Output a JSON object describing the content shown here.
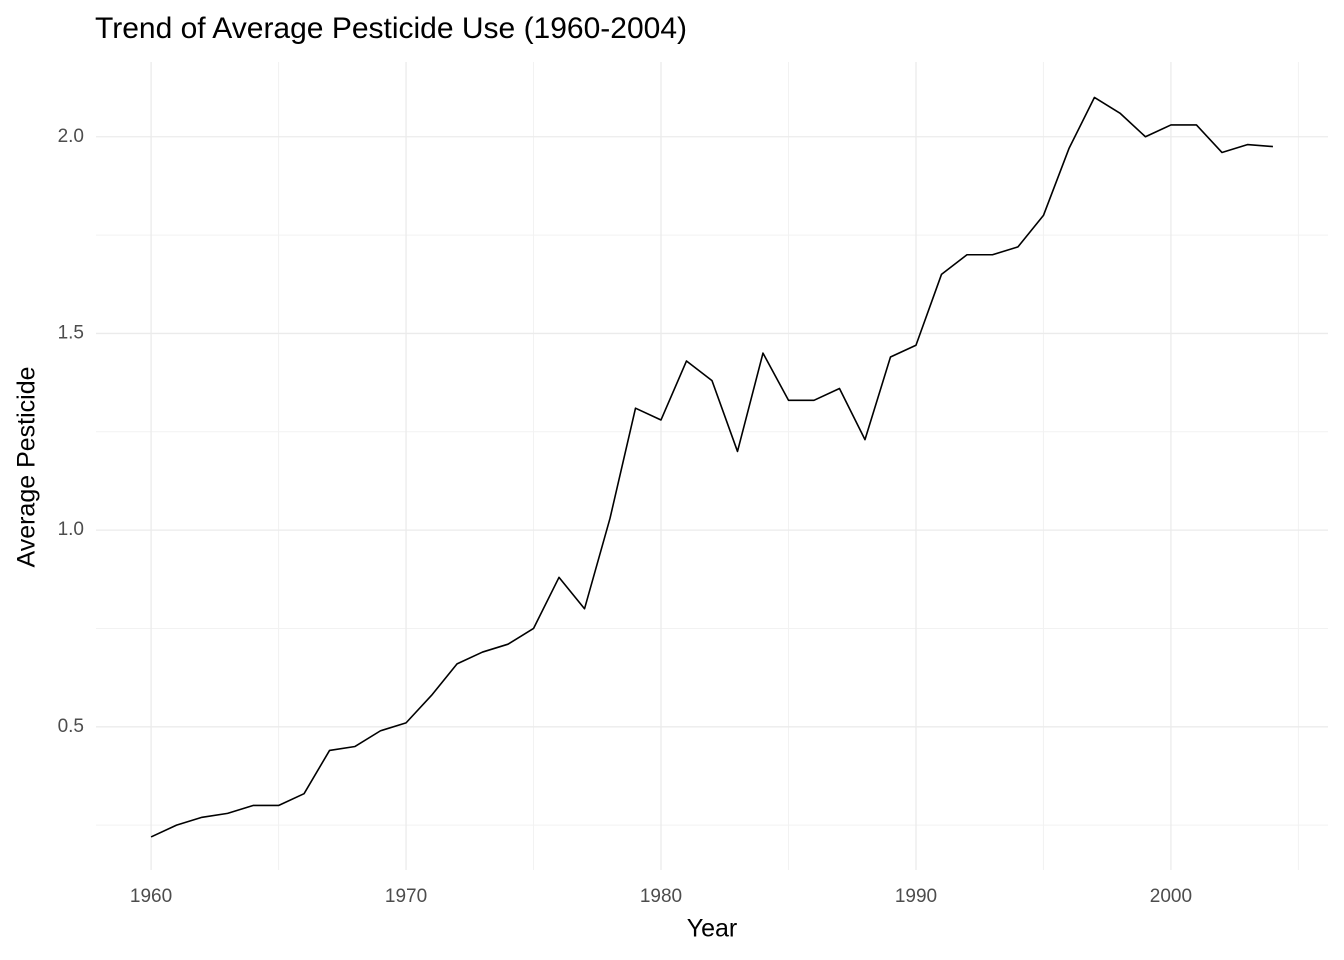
{
  "chart_data": {
    "type": "line",
    "title": "Trend of Average Pesticide Use (1960-2004)",
    "x_label": "Year",
    "y_label": "Average Pesticide",
    "x": [
      1960,
      1961,
      1962,
      1963,
      1964,
      1965,
      1966,
      1967,
      1968,
      1969,
      1970,
      1971,
      1972,
      1973,
      1974,
      1975,
      1976,
      1977,
      1978,
      1979,
      1980,
      1981,
      1982,
      1983,
      1984,
      1985,
      1986,
      1987,
      1988,
      1989,
      1990,
      1991,
      1992,
      1993,
      1994,
      1995,
      1996,
      1997,
      1998,
      1999,
      2000,
      2001,
      2002,
      2003,
      2004
    ],
    "series": [
      {
        "name": "Average Pesticide",
        "color": "#000000",
        "values": [
          0.22,
          0.25,
          0.27,
          0.28,
          0.3,
          0.3,
          0.33,
          0.44,
          0.45,
          0.49,
          0.51,
          0.58,
          0.66,
          0.69,
          0.71,
          0.75,
          0.88,
          0.8,
          1.03,
          1.31,
          1.28,
          1.43,
          1.38,
          1.2,
          1.45,
          1.33,
          1.33,
          1.36,
          1.23,
          1.44,
          1.47,
          1.65,
          1.7,
          1.7,
          1.72,
          1.8,
          1.97,
          2.1,
          2.06,
          2.0,
          2.03,
          2.03,
          1.96,
          1.98,
          1.975
        ]
      }
    ],
    "xlim": [
      1957.84,
      2006.16
    ],
    "xticks": [
      1960,
      1970,
      1980,
      1990,
      2000
    ],
    "ylim": [
      0.136,
      2.19
    ],
    "yticks": [
      {
        "value": 0.5,
        "label": "0.5"
      },
      {
        "value": 1,
        "label": "1.0"
      },
      {
        "value": 1.5,
        "label": "1.5"
      },
      {
        "value": 2,
        "label": "2.0"
      }
    ],
    "grid": true
  }
}
